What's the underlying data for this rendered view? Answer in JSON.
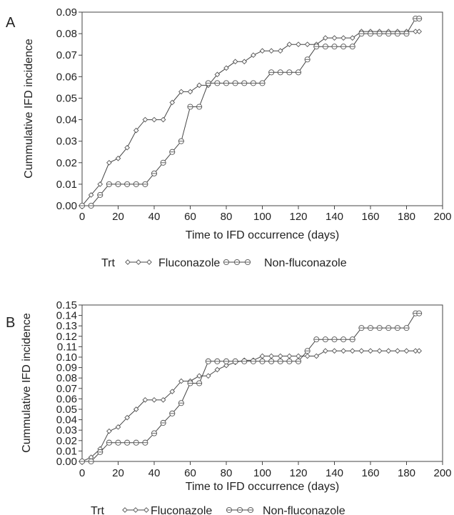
{
  "chart_data": [
    {
      "type": "line",
      "panel_label": "A",
      "xlabel": "Time to IFD occurrence (days)",
      "ylabel": "Cummulative IFD incidence",
      "xlim": [
        0,
        200
      ],
      "ylim": [
        0,
        0.09
      ],
      "xticks": [
        "0",
        "20",
        "40",
        "60",
        "80",
        "100",
        "120",
        "140",
        "160",
        "180",
        "200"
      ],
      "yticks": [
        "0.00",
        "0.01",
        "0.02",
        "0.03",
        "0.04",
        "0.05",
        "0.06",
        "0.07",
        "0.08",
        "0.09"
      ],
      "legend_title": "Trt",
      "legend_position": "bottom",
      "grid": false,
      "series": [
        {
          "name": "Fluconazole",
          "marker": "diamond",
          "x": [
            0,
            5,
            10,
            15,
            20,
            25,
            30,
            35,
            40,
            45,
            50,
            55,
            60,
            65,
            70,
            75,
            80,
            85,
            90,
            95,
            100,
            105,
            110,
            115,
            120,
            125,
            130,
            135,
            140,
            145,
            150,
            155,
            160,
            165,
            170,
            175,
            180,
            185,
            187
          ],
          "y": [
            0.0,
            0.005,
            0.01,
            0.02,
            0.022,
            0.027,
            0.035,
            0.04,
            0.04,
            0.04,
            0.048,
            0.053,
            0.053,
            0.056,
            0.056,
            0.061,
            0.064,
            0.067,
            0.067,
            0.07,
            0.072,
            0.072,
            0.072,
            0.075,
            0.075,
            0.075,
            0.075,
            0.078,
            0.078,
            0.078,
            0.078,
            0.081,
            0.081,
            0.081,
            0.081,
            0.081,
            0.081,
            0.081,
            0.081
          ]
        },
        {
          "name": "Non-fluconazole",
          "marker": "circle",
          "x": [
            0,
            5,
            10,
            15,
            20,
            25,
            30,
            35,
            40,
            45,
            50,
            55,
            60,
            65,
            70,
            75,
            80,
            85,
            90,
            95,
            100,
            105,
            110,
            115,
            120,
            125,
            130,
            135,
            140,
            145,
            150,
            155,
            160,
            165,
            170,
            175,
            180,
            185,
            187
          ],
          "y": [
            0.0,
            0.0,
            0.005,
            0.01,
            0.01,
            0.01,
            0.01,
            0.01,
            0.015,
            0.02,
            0.025,
            0.03,
            0.046,
            0.046,
            0.057,
            0.057,
            0.057,
            0.057,
            0.057,
            0.057,
            0.057,
            0.062,
            0.062,
            0.062,
            0.062,
            0.068,
            0.074,
            0.074,
            0.074,
            0.074,
            0.074,
            0.08,
            0.08,
            0.08,
            0.08,
            0.08,
            0.08,
            0.087,
            0.087
          ]
        }
      ]
    },
    {
      "type": "line",
      "panel_label": "B",
      "xlabel": "Time to IFD occurrence (days)",
      "ylabel": "Cummulative IFD incidence",
      "xlim": [
        0,
        200
      ],
      "ylim": [
        0,
        0.15
      ],
      "xticks": [
        "0",
        "20",
        "40",
        "60",
        "80",
        "100",
        "120",
        "140",
        "160",
        "180",
        "200"
      ],
      "yticks": [
        "0.00",
        "0.01",
        "0.02",
        "0.03",
        "0.04",
        "0.05",
        "0.06",
        "0.07",
        "0.08",
        "0.09",
        "0.10",
        "0.11",
        "0.12",
        "0.13",
        "0.14",
        "0.15"
      ],
      "legend_title": "Trt",
      "legend_position": "bottom",
      "grid": false,
      "series": [
        {
          "name": "Fluconazole",
          "marker": "diamond",
          "x": [
            0,
            5,
            10,
            15,
            20,
            25,
            30,
            35,
            40,
            45,
            50,
            55,
            60,
            65,
            70,
            75,
            80,
            85,
            90,
            95,
            100,
            105,
            110,
            115,
            120,
            125,
            130,
            135,
            140,
            145,
            150,
            155,
            160,
            165,
            170,
            175,
            180,
            185,
            187
          ],
          "y": [
            0.0,
            0.004,
            0.012,
            0.029,
            0.033,
            0.042,
            0.05,
            0.059,
            0.059,
            0.059,
            0.067,
            0.077,
            0.077,
            0.082,
            0.082,
            0.088,
            0.092,
            0.095,
            0.097,
            0.097,
            0.101,
            0.101,
            0.101,
            0.101,
            0.101,
            0.101,
            0.101,
            0.106,
            0.106,
            0.106,
            0.106,
            0.106,
            0.106,
            0.106,
            0.106,
            0.106,
            0.106,
            0.106,
            0.106
          ]
        },
        {
          "name": "Non-fluconazole",
          "marker": "circle",
          "x": [
            0,
            5,
            10,
            15,
            20,
            25,
            30,
            35,
            40,
            45,
            50,
            55,
            60,
            65,
            70,
            75,
            80,
            85,
            90,
            95,
            100,
            105,
            110,
            115,
            120,
            125,
            130,
            135,
            140,
            145,
            150,
            155,
            160,
            165,
            170,
            175,
            180,
            185,
            187
          ],
          "y": [
            0.0,
            0.0,
            0.009,
            0.018,
            0.018,
            0.018,
            0.018,
            0.018,
            0.027,
            0.037,
            0.046,
            0.056,
            0.075,
            0.075,
            0.096,
            0.096,
            0.096,
            0.096,
            0.096,
            0.096,
            0.096,
            0.096,
            0.096,
            0.096,
            0.096,
            0.106,
            0.117,
            0.117,
            0.117,
            0.117,
            0.117,
            0.128,
            0.128,
            0.128,
            0.128,
            0.128,
            0.128,
            0.142,
            0.142
          ]
        }
      ]
    }
  ]
}
